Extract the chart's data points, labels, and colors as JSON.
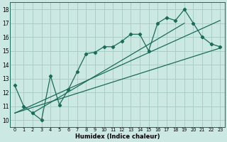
{
  "xlabel": "Humidex (Indice chaleur)",
  "xlim": [
    -0.5,
    23.5
  ],
  "ylim": [
    9.5,
    18.5
  ],
  "xticks": [
    0,
    1,
    2,
    3,
    4,
    5,
    6,
    7,
    8,
    9,
    10,
    11,
    12,
    13,
    14,
    15,
    16,
    17,
    18,
    19,
    20,
    21,
    22,
    23
  ],
  "yticks": [
    10,
    11,
    12,
    13,
    14,
    15,
    16,
    17,
    18
  ],
  "bg_color": "#cce8e2",
  "grid_color": "#aacfc8",
  "line_color": "#1a6b5a",
  "main_x": [
    0,
    1,
    2,
    3,
    4,
    5,
    6,
    7,
    8,
    9,
    10,
    11,
    12,
    13,
    14,
    15,
    16,
    17,
    18,
    19,
    20,
    21,
    22,
    23
  ],
  "main_y": [
    12.5,
    11.0,
    10.5,
    10.0,
    13.2,
    11.1,
    12.2,
    13.5,
    14.8,
    14.9,
    15.3,
    15.3,
    15.7,
    16.2,
    16.2,
    15.0,
    17.0,
    17.4,
    17.2,
    18.0,
    17.0,
    16.0,
    15.5,
    15.3
  ],
  "trend1_x": [
    0,
    23
  ],
  "trend1_y": [
    10.5,
    17.2
  ],
  "trend2_x": [
    0,
    23
  ],
  "trend2_y": [
    10.5,
    15.2
  ],
  "trend3_x": [
    2,
    19
  ],
  "trend3_y": [
    10.5,
    17.0
  ]
}
